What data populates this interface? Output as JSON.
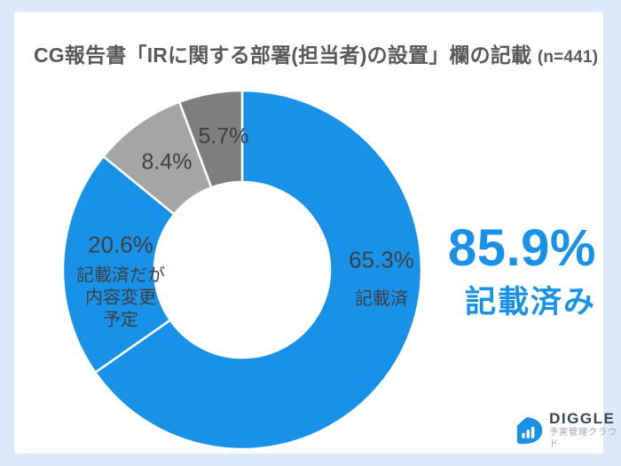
{
  "page": {
    "background_color": "#DAEAFB",
    "card_color": "#FFFFFF"
  },
  "title": {
    "text": "CG報告書「IRに関する部署(担当者)の設置」欄の記載",
    "sample_size": "(n=441)"
  },
  "chart_data": {
    "type": "pie",
    "subtype": "donut",
    "title": "CG報告書「IRに関する部署(担当者)の設置」欄の記載 (n=441)",
    "start_angle_deg": 0,
    "direction": "clockwise",
    "inner_radius_ratio": 0.49,
    "separator_color": "#FFFFFF",
    "segments": [
      {
        "label": "記載済",
        "value": 65.3,
        "pct_label": "65.3%",
        "color": "#1891E8"
      },
      {
        "label": "記載済だが内容変更予定",
        "value": 20.6,
        "pct_label": "20.6%",
        "color": "#1891E8",
        "label_lines": [
          "記載済だが",
          "内容変更",
          "予定"
        ]
      },
      {
        "label": "",
        "value": 8.4,
        "pct_label": "8.4%",
        "color": "#A5A5A5"
      },
      {
        "label": "",
        "value": 5.7,
        "pct_label": "5.7%",
        "color": "#7E7E7E"
      }
    ]
  },
  "highlight": {
    "value": "85.9%",
    "label": "記載済み",
    "color": "#1891E8"
  },
  "logo": {
    "name": "DIGGLE",
    "tagline": "予実管理クラウド",
    "icon_color": "#1891E8"
  }
}
